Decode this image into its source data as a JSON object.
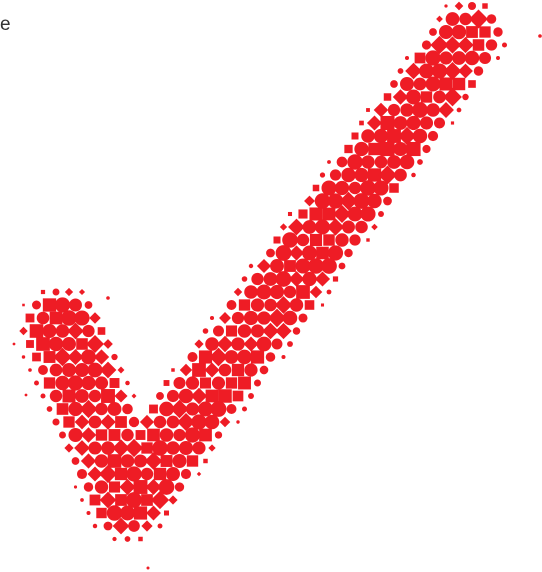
{
  "caption": "e"
}
